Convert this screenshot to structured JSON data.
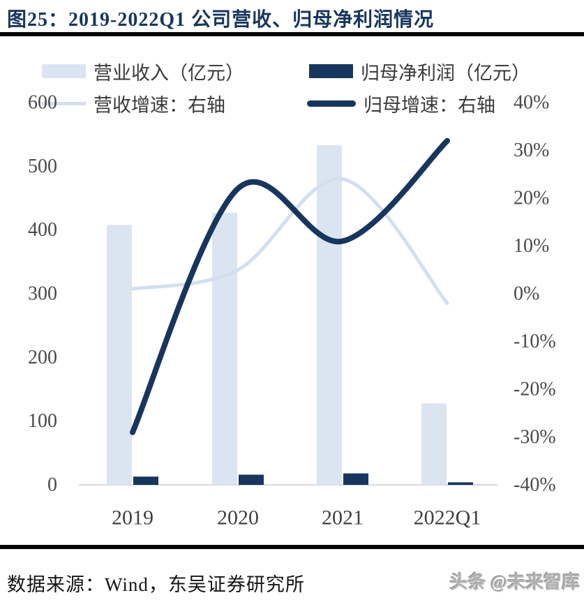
{
  "header": {
    "title": "图25：2019-2022Q1 公司营收、归母净利润情况"
  },
  "footer": {
    "source": "数据来源：Wind，东吴证券研究所",
    "watermark": "头条 @未来智库"
  },
  "colors": {
    "navy": "#17365d",
    "light_blue": "#dbe5f1",
    "light_line": "#d3dfef",
    "baseline": "#d9d9d9",
    "title_text": "#17365d",
    "axis_text": "#4a4a4a"
  },
  "chart_data": {
    "type": "combo: bar + smooth line, dual axis",
    "categories": [
      "2019",
      "2020",
      "2021",
      "2022Q1"
    ],
    "series": [
      {
        "name": "营业收入（亿元）",
        "type": "bar",
        "axis": "left",
        "color": "#dbe5f1",
        "values": [
          408,
          427,
          533,
          128
        ]
      },
      {
        "name": "归母净利润（亿元）",
        "type": "bar",
        "axis": "left",
        "color": "#17365d",
        "values": [
          13,
          16,
          18,
          4
        ]
      },
      {
        "name": "营收增速：右轴",
        "type": "line",
        "axis": "right",
        "color": "#d3dfef",
        "values": [
          1,
          5,
          24,
          -2
        ],
        "unit": "%"
      },
      {
        "name": "归母增速：右轴",
        "type": "line",
        "axis": "right",
        "color": "#17365d",
        "values": [
          -29,
          22,
          11,
          32
        ],
        "unit": "%"
      }
    ],
    "left_axis": {
      "min": 0,
      "max": 600,
      "ticks": [
        600,
        500,
        400,
        300,
        200,
        100,
        0
      ]
    },
    "right_axis": {
      "min": -40,
      "max": 40,
      "ticks": [
        "40%",
        "30%",
        "20%",
        "10%",
        "0%",
        "-10%",
        "-20%",
        "-30%",
        "-40%"
      ]
    },
    "grid": false,
    "legend_position": "top"
  }
}
